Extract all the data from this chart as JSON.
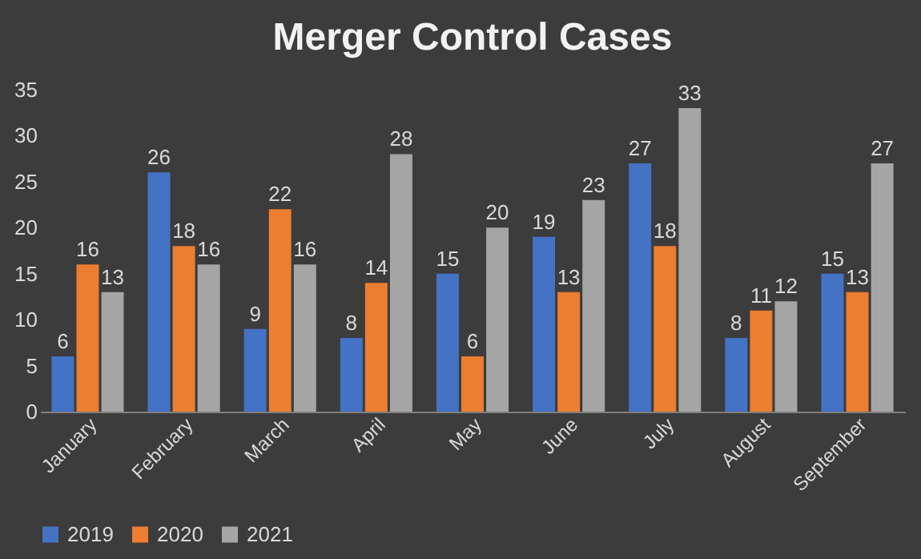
{
  "chart_data": {
    "type": "bar",
    "title": "Merger Control Cases",
    "categories": [
      "January",
      "February",
      "March",
      "April",
      "May",
      "June",
      "July",
      "August",
      "September"
    ],
    "series": [
      {
        "name": "2019",
        "color": "#4472c4",
        "values": [
          6,
          26,
          9,
          8,
          15,
          19,
          27,
          8,
          15
        ]
      },
      {
        "name": "2020",
        "color": "#ed7d31",
        "values": [
          16,
          18,
          22,
          14,
          6,
          13,
          18,
          11,
          13
        ]
      },
      {
        "name": "2021",
        "color": "#a5a5a5",
        "values": [
          13,
          16,
          16,
          28,
          20,
          23,
          33,
          12,
          27
        ]
      }
    ],
    "ylim": [
      0,
      35
    ],
    "yticks": [
      0,
      5,
      10,
      15,
      20,
      25,
      30,
      35
    ],
    "grid": false,
    "legend": "bottom",
    "data_labels": true
  }
}
